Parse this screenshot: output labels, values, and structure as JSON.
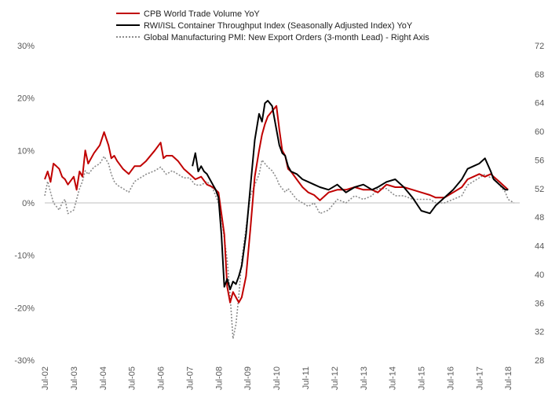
{
  "chart_data": {
    "type": "line",
    "colors": {
      "cpb": "#c00000",
      "rwi": "#000000",
      "pmi": "#8c8c8c",
      "zero_line": "#bfbfbf"
    },
    "legend": [
      "CPB World Trade Volume YoY",
      "RWI/ISL Container Throughput Index (Seasonally Adjusted Index) YoY",
      "Global Manufacturing PMI: New Export Orders (3-month Lead) - Right Axis"
    ],
    "left_axis": {
      "ylim": [
        -30,
        30
      ],
      "ticks": [
        "-30%",
        "-20%",
        "-10%",
        "0%",
        "10%",
        "20%",
        "30%"
      ]
    },
    "right_axis": {
      "ylim": [
        28,
        72
      ],
      "ticks": [
        "28",
        "32",
        "36",
        "40",
        "44",
        "48",
        "52",
        "56",
        "60",
        "64",
        "68",
        "72"
      ]
    },
    "x_axis": {
      "range": [
        2002.5,
        2018.9
      ],
      "ticks": [
        "Jul-02",
        "Jul-03",
        "Jul-04",
        "Jul-05",
        "Jul-06",
        "Jul-07",
        "Jul-08",
        "Jul-09",
        "Jul-10",
        "Jul-11",
        "Jul-12",
        "Jul-13",
        "Jul-14",
        "Jul-15",
        "Jul-16",
        "Jul-17",
        "Jul-18"
      ]
    },
    "series": [
      {
        "name": "CPB World Trade Volume YoY",
        "axis": "left",
        "x": [
          2002.5,
          2002.6,
          2002.7,
          2002.8,
          2002.9,
          2003.0,
          2003.1,
          2003.2,
          2003.3,
          2003.5,
          2003.6,
          2003.7,
          2003.8,
          2003.9,
          2004.0,
          2004.2,
          2004.4,
          2004.55,
          2004.7,
          2004.8,
          2004.9,
          2005.0,
          2005.2,
          2005.4,
          2005.6,
          2005.8,
          2006.0,
          2006.3,
          2006.5,
          2006.6,
          2006.7,
          2006.9,
          2007.1,
          2007.3,
          2007.5,
          2007.7,
          2007.9,
          2008.1,
          2008.3,
          2008.5,
          2008.7,
          2008.8,
          2008.9,
          2009.0,
          2009.1,
          2009.2,
          2009.3,
          2009.45,
          2009.6,
          2009.75,
          2009.9,
          2010.0,
          2010.1,
          2010.2,
          2010.35,
          2010.5,
          2010.6,
          2010.7,
          2010.8,
          2010.9,
          2011.0,
          2011.2,
          2011.4,
          2011.6,
          2011.8,
          2012.0,
          2012.3,
          2012.6,
          2012.9,
          2013.2,
          2013.5,
          2013.8,
          2014.0,
          2014.3,
          2014.6,
          2014.9,
          2015.2,
          2015.5,
          2015.8,
          2016.0,
          2016.3,
          2016.6,
          2016.9,
          2017.1,
          2017.3,
          2017.5,
          2017.7,
          2017.9,
          2018.0,
          2018.2,
          2018.4,
          2018.5
        ],
        "y": [
          4.5,
          6.0,
          4.0,
          7.5,
          7.0,
          6.5,
          5.0,
          4.5,
          3.5,
          5.0,
          2.5,
          6.0,
          5.0,
          10.0,
          7.5,
          9.5,
          11.0,
          13.5,
          11.0,
          8.5,
          9.0,
          8.0,
          6.5,
          5.5,
          7.0,
          7.0,
          8.0,
          10.0,
          11.5,
          8.5,
          9.0,
          9.0,
          8.0,
          6.5,
          5.5,
          4.5,
          5.0,
          3.5,
          3.0,
          2.0,
          -6.0,
          -16.0,
          -19.0,
          -17.0,
          -18.0,
          -19.0,
          -18.0,
          -14.0,
          -5.0,
          5.0,
          10.0,
          13.0,
          15.0,
          16.5,
          17.5,
          18.5,
          14.0,
          10.0,
          9.0,
          6.5,
          6.0,
          4.5,
          3.0,
          2.0,
          1.5,
          0.5,
          2.0,
          2.5,
          2.5,
          3.0,
          2.5,
          2.5,
          2.0,
          3.5,
          3.0,
          3.0,
          2.5,
          2.0,
          1.5,
          1.0,
          1.0,
          2.0,
          3.0,
          4.5,
          5.0,
          5.5,
          5.0,
          5.5,
          5.0,
          4.0,
          3.0,
          2.5
        ]
      },
      {
        "name": "RWI/ISL Container Throughput Index (Seasonally Adjusted Index) YoY",
        "axis": "left",
        "x": [
          2007.6,
          2007.7,
          2007.8,
          2007.9,
          2008.0,
          2008.1,
          2008.2,
          2008.3,
          2008.4,
          2008.5,
          2008.6,
          2008.7,
          2008.8,
          2008.9,
          2009.0,
          2009.1,
          2009.2,
          2009.3,
          2009.45,
          2009.6,
          2009.75,
          2009.9,
          2010.0,
          2010.1,
          2010.2,
          2010.35,
          2010.5,
          2010.6,
          2010.7,
          2010.8,
          2010.9,
          2011.0,
          2011.2,
          2011.4,
          2011.6,
          2011.8,
          2012.0,
          2012.3,
          2012.6,
          2012.9,
          2013.2,
          2013.5,
          2013.8,
          2014.0,
          2014.3,
          2014.6,
          2014.9,
          2015.2,
          2015.5,
          2015.8,
          2016.0,
          2016.3,
          2016.6,
          2016.9,
          2017.1,
          2017.3,
          2017.5,
          2017.7,
          2017.9,
          2018.0,
          2018.2,
          2018.4,
          2018.5
        ],
        "y": [
          7.0,
          9.5,
          6.0,
          7.0,
          6.0,
          5.5,
          4.5,
          3.5,
          2.5,
          1.0,
          -6.0,
          -16.0,
          -14.5,
          -16.5,
          -15.0,
          -15.5,
          -14.0,
          -12.0,
          -6.0,
          3.0,
          12.0,
          17.0,
          15.5,
          19.0,
          19.5,
          18.5,
          14.0,
          11.0,
          9.5,
          9.0,
          7.0,
          6.0,
          5.5,
          4.5,
          4.0,
          3.5,
          3.0,
          2.5,
          3.5,
          2.0,
          3.0,
          3.5,
          2.5,
          3.0,
          4.0,
          4.5,
          3.0,
          1.0,
          -1.5,
          -2.0,
          -0.5,
          1.0,
          2.5,
          4.5,
          6.5,
          7.0,
          7.5,
          8.5,
          6.0,
          4.5,
          3.5,
          2.5,
          2.5
        ]
      },
      {
        "name": "Global Manufacturing PMI: New Export Orders (3-month Lead) - Right Axis",
        "axis": "right",
        "x": [
          2002.5,
          2002.6,
          2002.7,
          2002.8,
          2002.9,
          2003.0,
          2003.1,
          2003.2,
          2003.3,
          2003.5,
          2003.6,
          2003.7,
          2003.8,
          2003.9,
          2004.0,
          2004.2,
          2004.4,
          2004.55,
          2004.7,
          2004.8,
          2004.9,
          2005.0,
          2005.2,
          2005.4,
          2005.6,
          2005.8,
          2006.0,
          2006.3,
          2006.5,
          2006.6,
          2006.7,
          2006.9,
          2007.1,
          2007.3,
          2007.5,
          2007.7,
          2007.9,
          2008.1,
          2008.3,
          2008.5,
          2008.6,
          2008.7,
          2008.8,
          2008.9,
          2009.0,
          2009.1,
          2009.2,
          2009.3,
          2009.45,
          2009.6,
          2009.75,
          2009.9,
          2010.0,
          2010.1,
          2010.2,
          2010.35,
          2010.5,
          2010.6,
          2010.7,
          2010.8,
          2010.9,
          2011.0,
          2011.2,
          2011.4,
          2011.6,
          2011.8,
          2012.0,
          2012.3,
          2012.6,
          2012.9,
          2013.2,
          2013.5,
          2013.8,
          2014.0,
          2014.3,
          2014.6,
          2014.9,
          2015.2,
          2015.5,
          2015.8,
          2016.0,
          2016.3,
          2016.6,
          2016.9,
          2017.1,
          2017.3,
          2017.5,
          2017.7,
          2017.9,
          2018.0,
          2018.2,
          2018.4,
          2018.5,
          2018.7
        ],
        "y": [
          51.0,
          53.0,
          51.5,
          50.0,
          49.5,
          49.0,
          50.0,
          50.5,
          48.5,
          49.0,
          50.5,
          52.0,
          53.0,
          54.5,
          54.0,
          55.0,
          55.5,
          56.5,
          55.5,
          54.0,
          53.0,
          52.5,
          52.0,
          51.5,
          53.0,
          53.5,
          54.0,
          54.5,
          55.0,
          54.5,
          54.0,
          54.5,
          54.0,
          53.5,
          53.5,
          52.5,
          52.5,
          53.0,
          52.0,
          50.0,
          48.0,
          45.0,
          42.0,
          37.0,
          31.0,
          33.0,
          37.0,
          42.0,
          46.5,
          51.0,
          52.5,
          54.0,
          56.0,
          55.5,
          55.0,
          54.5,
          53.5,
          52.5,
          52.0,
          51.5,
          52.0,
          51.5,
          50.5,
          50.0,
          49.5,
          50.0,
          48.5,
          49.0,
          50.5,
          50.0,
          51.0,
          50.5,
          51.0,
          52.0,
          52.0,
          51.0,
          51.0,
          50.5,
          50.5,
          50.5,
          50.0,
          50.0,
          50.5,
          51.0,
          52.5,
          53.0,
          53.5,
          54.0,
          53.5,
          53.5,
          52.5,
          51.5,
          50.5,
          50.0
        ]
      }
    ]
  }
}
